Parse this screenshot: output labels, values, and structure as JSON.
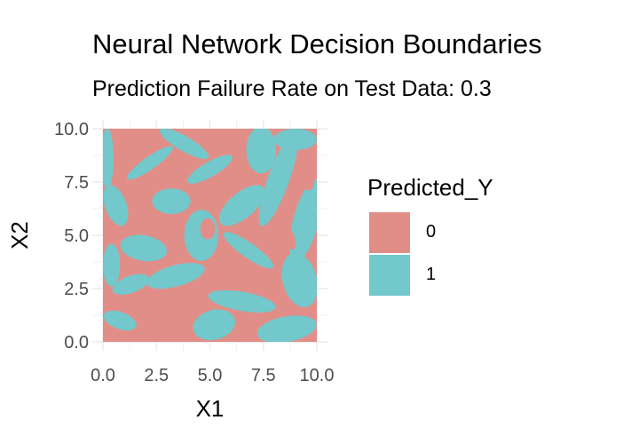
{
  "chart_data": {
    "type": "heatmap",
    "title": "Neural Network Decision Boundaries",
    "subtitle": "Prediction Failure Rate on Test Data: 0.3",
    "xlabel": "X1",
    "ylabel": "X2",
    "xlim": [
      0,
      10
    ],
    "ylim": [
      0,
      10
    ],
    "x_ticks": [
      "0.0",
      "2.5",
      "5.0",
      "7.5",
      "10.0"
    ],
    "y_ticks": [
      "0.0",
      "2.5",
      "5.0",
      "7.5",
      "10.0"
    ],
    "grid": true,
    "legend": {
      "title": "Predicted_Y",
      "position": "right",
      "entries": [
        {
          "label": "0",
          "color": "#E28E88"
        },
        {
          "label": "1",
          "color": "#72C8CB"
        }
      ]
    },
    "colors": {
      "class_0": "#E28E88",
      "class_1": "#72C8CB",
      "grid": "#ebebeb"
    },
    "regions": {
      "background_class": "0",
      "class_1_blobs": [
        {
          "x": 0.2,
          "y": 8.6,
          "rx": 0.3,
          "ry": 1.4,
          "angle": 0
        },
        {
          "x": 0.6,
          "y": 6.4,
          "rx": 0.5,
          "ry": 1.0,
          "angle": 20
        },
        {
          "x": 0.4,
          "y": 3.6,
          "rx": 0.4,
          "ry": 1.0,
          "angle": 0
        },
        {
          "x": 0.8,
          "y": 1.0,
          "rx": 0.8,
          "ry": 0.4,
          "angle": -20
        },
        {
          "x": 1.3,
          "y": 2.7,
          "rx": 0.9,
          "ry": 0.4,
          "angle": 20
        },
        {
          "x": 1.9,
          "y": 4.4,
          "rx": 1.1,
          "ry": 0.6,
          "angle": -10
        },
        {
          "x": 2.2,
          "y": 8.4,
          "rx": 1.3,
          "ry": 0.3,
          "angle": 35
        },
        {
          "x": 3.2,
          "y": 6.6,
          "rx": 0.9,
          "ry": 0.6,
          "angle": 0
        },
        {
          "x": 3.4,
          "y": 3.1,
          "rx": 1.4,
          "ry": 0.5,
          "angle": 15
        },
        {
          "x": 3.8,
          "y": 9.3,
          "rx": 1.3,
          "ry": 0.35,
          "angle": -30
        },
        {
          "x": 4.6,
          "y": 5.0,
          "rx": 0.8,
          "ry": 1.2,
          "angle": 0
        },
        {
          "x": 5.2,
          "y": 0.8,
          "rx": 1.0,
          "ry": 0.7,
          "angle": 15
        },
        {
          "x": 5.0,
          "y": 8.1,
          "rx": 1.2,
          "ry": 0.35,
          "angle": 30
        },
        {
          "x": 6.5,
          "y": 1.9,
          "rx": 1.6,
          "ry": 0.45,
          "angle": -10
        },
        {
          "x": 6.8,
          "y": 4.3,
          "rx": 1.4,
          "ry": 0.35,
          "angle": -35
        },
        {
          "x": 6.5,
          "y": 6.4,
          "rx": 1.3,
          "ry": 0.6,
          "angle": 40
        },
        {
          "x": 7.4,
          "y": 9.0,
          "rx": 0.7,
          "ry": 1.1,
          "angle": 0
        },
        {
          "x": 8.2,
          "y": 7.6,
          "rx": 0.5,
          "ry": 2.3,
          "angle": -20
        },
        {
          "x": 8.6,
          "y": 0.6,
          "rx": 1.4,
          "ry": 0.6,
          "angle": 10
        },
        {
          "x": 9.2,
          "y": 2.9,
          "rx": 0.8,
          "ry": 1.3,
          "angle": 15
        },
        {
          "x": 9.5,
          "y": 5.7,
          "rx": 0.6,
          "ry": 2.0,
          "angle": -15
        },
        {
          "x": 9.0,
          "y": 9.5,
          "rx": 1.0,
          "ry": 0.5,
          "angle": 0
        }
      ],
      "class_0_blobs": [
        {
          "x": 0.8,
          "y": 0.3,
          "rx": 0.5,
          "ry": 0.25,
          "angle": 0
        },
        {
          "x": 4.9,
          "y": 5.3,
          "rx": 0.35,
          "ry": 0.5,
          "angle": 0
        },
        {
          "x": 6.3,
          "y": 2.9,
          "rx": 1.0,
          "ry": 0.25,
          "angle": 25
        },
        {
          "x": 8.7,
          "y": 4.9,
          "rx": 0.25,
          "ry": 0.6,
          "angle": 20
        },
        {
          "x": 9.6,
          "y": 7.6,
          "rx": 0.3,
          "ry": 0.5,
          "angle": 0
        }
      ]
    }
  }
}
